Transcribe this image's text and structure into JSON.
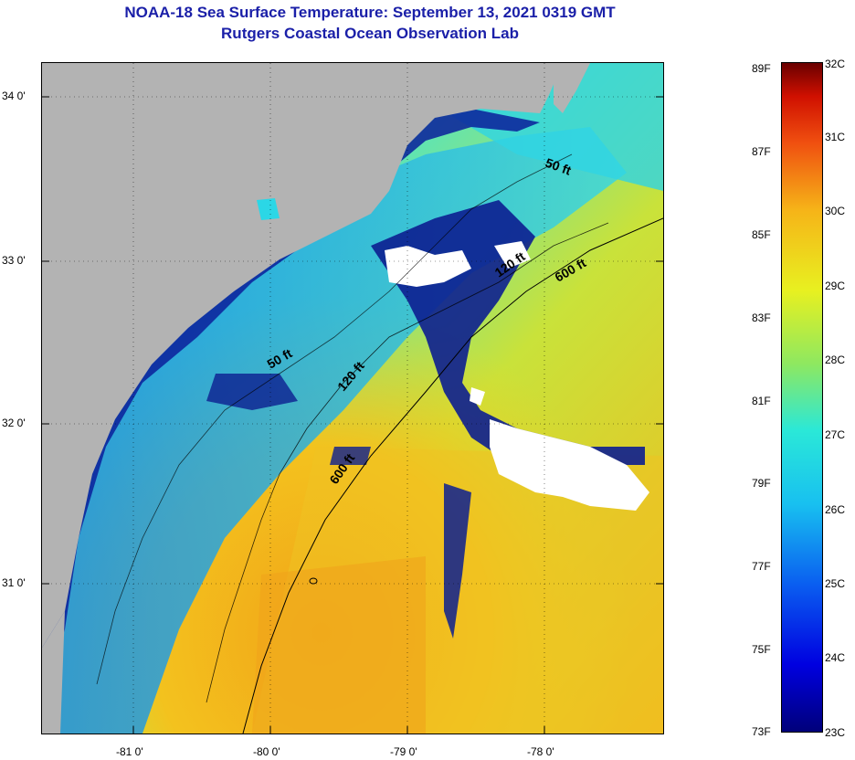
{
  "header": {
    "title": "NOAA-18 Sea Surface Temperature:  September 13, 2021 0319 GMT",
    "subtitle": "Rutgers Coastal Ocean Observation Lab"
  },
  "map": {
    "lat_labels": [
      "34 0'",
      "33 0'",
      "32 0'",
      "31 0'"
    ],
    "lon_labels": [
      "-81 0'",
      "-80 0'",
      "-79 0'",
      "-78 0'"
    ],
    "contour_labels": [
      "50 ft",
      "120 ft",
      "600 ft",
      "50 ft",
      "120 ft",
      "600 ft"
    ],
    "colors": {
      "land": "#b3b3b3",
      "cloud": "#ffffff",
      "coast_line": "#000000"
    }
  },
  "colorbar": {
    "fahrenheit_labels": [
      "89F",
      "87F",
      "85F",
      "83F",
      "81F",
      "79F",
      "77F",
      "75F",
      "73F"
    ],
    "celsius_labels": [
      "32C",
      "31C",
      "30C",
      "29C",
      "28C",
      "27C",
      "26C",
      "25C",
      "24C",
      "23C"
    ],
    "min_c": 23,
    "max_c": 32
  }
}
